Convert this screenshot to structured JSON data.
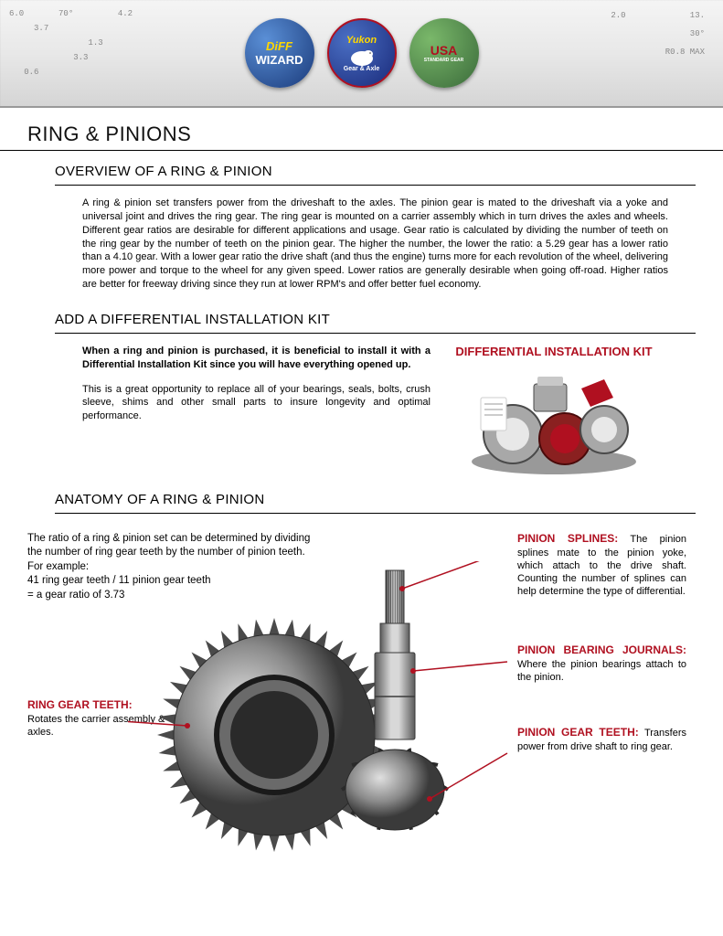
{
  "schematic": {
    "left": [
      "6.0",
      "70°",
      "3.7",
      "4.2",
      "1.3",
      "3.3",
      "0.6"
    ],
    "right": [
      "2.0",
      "13.",
      "30°",
      "R0.8 MAX"
    ]
  },
  "logos": {
    "diff": {
      "line1": "DiFF",
      "line2": "WIZARD"
    },
    "yukon": {
      "line1": "Yukon",
      "line2": "Gear & Axle"
    },
    "usa": {
      "line1": "USA",
      "line2": "STANDARD GEAR"
    }
  },
  "page_title": "RING & PINIONS",
  "overview": {
    "title": "OVERVIEW OF A RING & PINION",
    "body": "A ring & pinion set transfers power from the driveshaft to the axles. The pinion gear is mated to the driveshaft via a yoke and universal joint and drives the ring gear. The ring gear is mounted on a carrier assembly which in turn drives the axles and wheels. Different gear ratios are desirable for different applications and usage. Gear ratio is calculated by dividing the number of teeth on the ring gear by the number of teeth on the pinion gear. The higher the number, the lower the ratio: a 5.29 gear has a lower ratio than a 4.10 gear. With a lower gear ratio the drive shaft (and thus the engine) turns more for each revolution of the wheel, delivering more power and torque to the wheel for any given speed. Lower ratios are generally desirable when going off-road. Higher ratios are better for freeway driving since they run at lower RPM's and offer better fuel economy."
  },
  "diffkit": {
    "title": "ADD A DIFFERENTIAL INSTALLATION KIT",
    "bold": "When a ring and pinion is purchased, it is beneficial to install it with a Differential Installation Kit since you will have everything opened up.",
    "para": "This is a great opportunity to replace all of your bearings, seals, bolts, crush sleeve, shims and other small parts to insure longevity and optimal performance.",
    "label": "DIFFERENTIAL INSTALLATION KIT"
  },
  "anatomy": {
    "title": "ANATOMY OF A RING & PINION",
    "intro_l1": "The ratio of a ring & pinion set can be determined by dividing the number of ring gear teeth by the number of pinion teeth.",
    "intro_l2": "For example:",
    "intro_l3": "41 ring gear teeth / 11 pinion gear teeth",
    "intro_l4": "= a gear ratio of 3.73",
    "ring_gear": {
      "title": "RING GEAR TEETH:",
      "body": "Rotates the carrier assembly & axles."
    },
    "pinion_splines": {
      "title": "PINION SPLINES:",
      "body": "The pinion splines mate to the pinion yoke, which attach to the drive shaft. Counting the number of splines can help determine the type of differential."
    },
    "pinion_bearing": {
      "title": "PINION BEARING JOURNALS:",
      "body": "Where the pinion bearings attach to the pinion."
    },
    "pinion_gear": {
      "title": "PINION GEAR TEETH:",
      "body": "Transfers power from drive shaft to ring gear."
    }
  },
  "colors": {
    "accent_red": "#b01020",
    "steel_dark": "#4a4a4a",
    "steel_light": "#a8a8a8"
  }
}
